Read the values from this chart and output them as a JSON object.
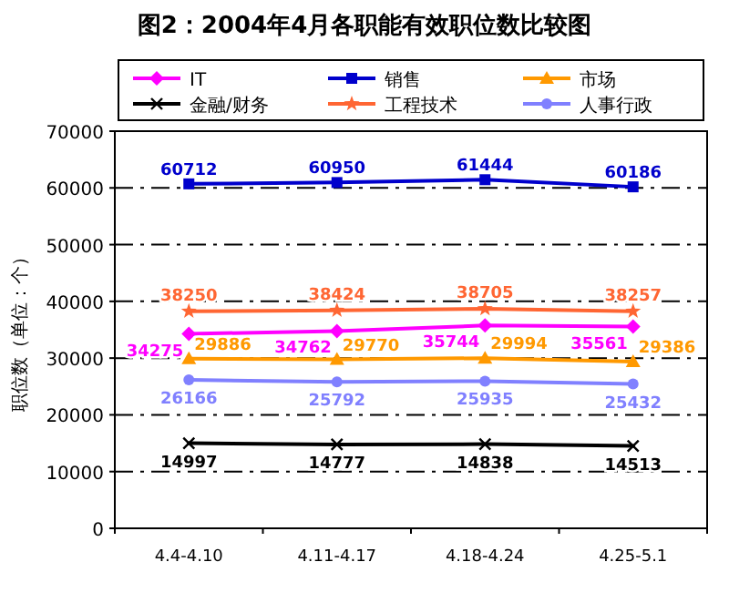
{
  "chart_data": {
    "type": "line",
    "title": "图2：2004年4月各职能有效职位数比较图",
    "ylabel": "职位数（单位：个）",
    "categories": [
      "4.4-4.10",
      "4.11-4.17",
      "4.18-4.24",
      "4.25-5.1"
    ],
    "series": [
      {
        "name": "IT",
        "color": "#ff00ff",
        "marker": "diamond",
        "values": [
          34275,
          34762,
          35744,
          35561
        ]
      },
      {
        "name": "销售",
        "color": "#0000cc",
        "marker": "square",
        "values": [
          60712,
          60950,
          61444,
          60186
        ]
      },
      {
        "name": "市场",
        "color": "#ff9900",
        "marker": "triangle",
        "values": [
          29886,
          29770,
          29994,
          29386
        ]
      },
      {
        "name": "金融/财务",
        "color": "#000000",
        "marker": "cross",
        "values": [
          14997,
          14777,
          14838,
          14513
        ]
      },
      {
        "name": "工程技术",
        "color": "#ff6633",
        "marker": "star",
        "values": [
          38250,
          38424,
          38705,
          38257
        ]
      },
      {
        "name": "人事行政",
        "color": "#8080ff",
        "marker": "circle",
        "values": [
          26166,
          25792,
          25935,
          25432
        ]
      }
    ],
    "ylim": [
      0,
      70000
    ],
    "yticks": [
      0,
      10000,
      20000,
      30000,
      40000,
      50000,
      60000,
      70000
    ],
    "grid": "y",
    "legend": "top",
    "data_labels": true
  }
}
